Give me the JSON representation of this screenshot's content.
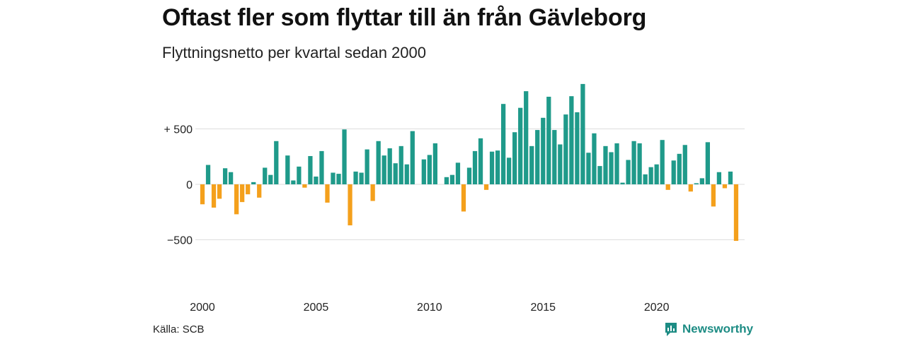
{
  "title": "Oftast fler som flyttar till än från Gävleborg",
  "subtitle": "Flyttningsnetto per kvartal sedan 2000",
  "source": "Källa: SCB",
  "brand": {
    "name": "Newsworthy",
    "color": "#1d8c84",
    "icon": "newsworthy-chart-bubble-icon"
  },
  "chart_data": {
    "type": "bar",
    "title": "Oftast fler som flyttar till än från Gävleborg",
    "subtitle": "Flyttningsnetto per kvartal sedan 2000",
    "xlabel": "",
    "ylabel": "",
    "ylim": [
      -600,
      900
    ],
    "grid": true,
    "legend": "none",
    "colors": {
      "positive": "#1f9a8a",
      "negative": "#f4a01c",
      "gridline": "#dddddd"
    },
    "y_ticks": [
      {
        "value": 500,
        "label": "+ 500"
      },
      {
        "value": 0,
        "label": "0"
      },
      {
        "value": -500,
        "label": "−500"
      }
    ],
    "x_ticks": [
      {
        "value": "2000",
        "label": "2000"
      },
      {
        "value": "2005",
        "label": "2005"
      },
      {
        "value": "2010",
        "label": "2010"
      },
      {
        "value": "2015",
        "label": "2015"
      },
      {
        "value": "2020",
        "label": "2020"
      }
    ],
    "categories": [
      "2000 Q1",
      "2000 Q2",
      "2000 Q3",
      "2000 Q4",
      "2001 Q1",
      "2001 Q2",
      "2001 Q3",
      "2001 Q4",
      "2002 Q1",
      "2002 Q2",
      "2002 Q3",
      "2002 Q4",
      "2003 Q1",
      "2003 Q2",
      "2003 Q3",
      "2003 Q4",
      "2004 Q1",
      "2004 Q2",
      "2004 Q3",
      "2004 Q4",
      "2005 Q1",
      "2005 Q2",
      "2005 Q3",
      "2005 Q4",
      "2006 Q1",
      "2006 Q2",
      "2006 Q3",
      "2006 Q4",
      "2007 Q1",
      "2007 Q2",
      "2007 Q3",
      "2007 Q4",
      "2008 Q1",
      "2008 Q2",
      "2008 Q3",
      "2008 Q4",
      "2009 Q1",
      "2009 Q2",
      "2009 Q3",
      "2009 Q4",
      "2010 Q1",
      "2010 Q2",
      "2010 Q3",
      "2010 Q4",
      "2011 Q1",
      "2011 Q2",
      "2011 Q3",
      "2011 Q4",
      "2012 Q1",
      "2012 Q2",
      "2012 Q3",
      "2012 Q4",
      "2013 Q1",
      "2013 Q2",
      "2013 Q3",
      "2013 Q4",
      "2014 Q1",
      "2014 Q2",
      "2014 Q3",
      "2014 Q4",
      "2015 Q1",
      "2015 Q2",
      "2015 Q3",
      "2015 Q4",
      "2016 Q1",
      "2016 Q2",
      "2016 Q3",
      "2016 Q4",
      "2017 Q1",
      "2017 Q2",
      "2017 Q3",
      "2017 Q4",
      "2018 Q1",
      "2018 Q2",
      "2018 Q3",
      "2018 Q4",
      "2019 Q1",
      "2019 Q2",
      "2019 Q3",
      "2019 Q4",
      "2020 Q1",
      "2020 Q2",
      "2020 Q3",
      "2020 Q4",
      "2021 Q1",
      "2021 Q2",
      "2021 Q3",
      "2021 Q4",
      "2022 Q1",
      "2022 Q2",
      "2022 Q3",
      "2022 Q4",
      "2023 Q1",
      "2023 Q2",
      "2023 Q3",
      "2023 Q4"
    ],
    "values": [
      -180,
      175,
      -210,
      -130,
      145,
      110,
      -270,
      -160,
      -90,
      20,
      -120,
      150,
      85,
      390,
      0,
      260,
      35,
      160,
      -30,
      255,
      70,
      300,
      -165,
      105,
      95,
      495,
      -370,
      115,
      105,
      315,
      -150,
      390,
      260,
      325,
      190,
      345,
      180,
      480,
      0,
      225,
      265,
      370,
      0,
      65,
      85,
      195,
      -245,
      150,
      300,
      415,
      -50,
      295,
      305,
      725,
      240,
      470,
      690,
      840,
      345,
      490,
      600,
      790,
      490,
      360,
      630,
      795,
      650,
      905,
      285,
      460,
      165,
      345,
      290,
      370,
      15,
      220,
      390,
      370,
      90,
      155,
      180,
      400,
      -50,
      215,
      275,
      355,
      -65,
      10,
      55,
      380,
      -200,
      110,
      -35,
      115,
      -510,
      0
    ]
  }
}
